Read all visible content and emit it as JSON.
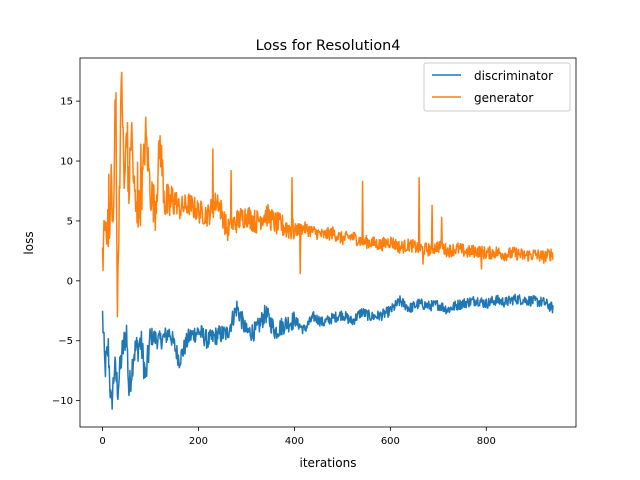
{
  "chart_data": {
    "type": "line",
    "title": "Loss for Resolution4",
    "xlabel": "iterations",
    "ylabel": "loss",
    "xlim": [
      -47,
      987
    ],
    "ylim": [
      -12.2,
      18.6
    ],
    "x_ticks": [
      0,
      200,
      400,
      600,
      800
    ],
    "y_ticks": [
      -10,
      -5,
      0,
      5,
      10,
      15
    ],
    "x_tick_labels": [
      "0",
      "200",
      "400",
      "600",
      "800"
    ],
    "y_tick_labels": [
      "−10",
      "−5",
      "0",
      "5",
      "10",
      "15"
    ],
    "legend_position": "top-right",
    "grid": false,
    "x_range": [
      0,
      939
    ],
    "series": [
      {
        "name": "discriminator",
        "color": "#1f77b4",
        "keypoints": [
          [
            0,
            -2.9
          ],
          [
            5,
            -7.4
          ],
          [
            12,
            -5.6
          ],
          [
            18,
            -10.7
          ],
          [
            25,
            -7.2
          ],
          [
            32,
            -9.0
          ],
          [
            40,
            -6.2
          ],
          [
            50,
            -4.2
          ],
          [
            55,
            -9.3
          ],
          [
            65,
            -6.0
          ],
          [
            80,
            -5.1
          ],
          [
            90,
            -8.1
          ],
          [
            100,
            -4.6
          ],
          [
            120,
            -5.0
          ],
          [
            140,
            -4.3
          ],
          [
            160,
            -6.6
          ],
          [
            180,
            -4.7
          ],
          [
            200,
            -4.2
          ],
          [
            220,
            -5.0
          ],
          [
            240,
            -4.5
          ],
          [
            260,
            -4.4
          ],
          [
            280,
            -2.2
          ],
          [
            300,
            -4.3
          ],
          [
            320,
            -4.2
          ],
          [
            340,
            -2.7
          ],
          [
            360,
            -4.2
          ],
          [
            380,
            -3.6
          ],
          [
            400,
            -3.3
          ],
          [
            420,
            -4.1
          ],
          [
            440,
            -3.0
          ],
          [
            460,
            -3.5
          ],
          [
            480,
            -3.1
          ],
          [
            500,
            -2.8
          ],
          [
            520,
            -3.4
          ],
          [
            540,
            -2.6
          ],
          [
            560,
            -3.0
          ],
          [
            580,
            -2.9
          ],
          [
            600,
            -2.5
          ],
          [
            620,
            -1.7
          ],
          [
            640,
            -2.3
          ],
          [
            660,
            -1.9
          ],
          [
            680,
            -2.1
          ],
          [
            700,
            -2.0
          ],
          [
            720,
            -2.4
          ],
          [
            740,
            -2.0
          ],
          [
            760,
            -1.8
          ],
          [
            780,
            -1.6
          ],
          [
            800,
            -1.9
          ],
          [
            820,
            -1.6
          ],
          [
            840,
            -1.8
          ],
          [
            860,
            -1.5
          ],
          [
            880,
            -1.6
          ],
          [
            900,
            -1.7
          ],
          [
            920,
            -1.8
          ],
          [
            939,
            -2.3
          ]
        ]
      },
      {
        "name": "generator",
        "color": "#ff7f0e",
        "keypoints": [
          [
            0,
            1.2
          ],
          [
            3,
            4.5
          ],
          [
            8,
            5.0
          ],
          [
            15,
            3.2
          ],
          [
            18,
            8.9
          ],
          [
            22,
            4.3
          ],
          [
            28,
            15.1
          ],
          [
            31,
            -3.0
          ],
          [
            35,
            7.5
          ],
          [
            40,
            17.4
          ],
          [
            45,
            7.6
          ],
          [
            50,
            12.0
          ],
          [
            55,
            7.0
          ],
          [
            60,
            13.2
          ],
          [
            65,
            8.1
          ],
          [
            70,
            5.5
          ],
          [
            80,
            6.5
          ],
          [
            90,
            12.2
          ],
          [
            100,
            7.5
          ],
          [
            110,
            6.0
          ],
          [
            120,
            11.5
          ],
          [
            130,
            6.6
          ],
          [
            140,
            6.2
          ],
          [
            150,
            7.0
          ],
          [
            160,
            6.0
          ],
          [
            180,
            6.4
          ],
          [
            200,
            5.8
          ],
          [
            220,
            5.5
          ],
          [
            240,
            6.8
          ],
          [
            260,
            4.2
          ],
          [
            280,
            5.0
          ],
          [
            300,
            5.5
          ],
          [
            320,
            4.9
          ],
          [
            340,
            5.6
          ],
          [
            360,
            4.8
          ],
          [
            380,
            4.5
          ],
          [
            400,
            4.2
          ],
          [
            420,
            4.4
          ],
          [
            440,
            4.1
          ],
          [
            460,
            3.8
          ],
          [
            480,
            4.0
          ],
          [
            500,
            3.5
          ],
          [
            520,
            3.7
          ],
          [
            540,
            3.3
          ],
          [
            560,
            3.2
          ],
          [
            580,
            3.0
          ],
          [
            600,
            3.3
          ],
          [
            620,
            2.8
          ],
          [
            640,
            3.0
          ],
          [
            660,
            2.7
          ],
          [
            680,
            2.6
          ],
          [
            700,
            2.9
          ],
          [
            720,
            2.5
          ],
          [
            740,
            2.7
          ],
          [
            760,
            2.4
          ],
          [
            780,
            2.5
          ],
          [
            800,
            2.3
          ],
          [
            820,
            2.4
          ],
          [
            840,
            2.2
          ],
          [
            860,
            2.3
          ],
          [
            880,
            2.1
          ],
          [
            900,
            2.2
          ],
          [
            920,
            2.0
          ],
          [
            939,
            2.3
          ]
        ],
        "spikes": [
          [
            13,
            8.9
          ],
          [
            26,
            15.1
          ],
          [
            31,
            -3.0
          ],
          [
            40,
            17.4
          ],
          [
            52,
            13.2
          ],
          [
            60,
            12.3
          ],
          [
            73,
            9.9
          ],
          [
            80,
            11.4
          ],
          [
            118,
            11.7
          ],
          [
            230,
            11.0
          ],
          [
            268,
            9.2
          ],
          [
            395,
            8.6
          ],
          [
            412,
            0.6
          ],
          [
            542,
            8.3
          ],
          [
            660,
            8.6
          ],
          [
            668,
            1.4
          ],
          [
            687,
            6.3
          ],
          [
            707,
            5.3
          ],
          [
            790,
            1.0
          ]
        ]
      }
    ]
  }
}
